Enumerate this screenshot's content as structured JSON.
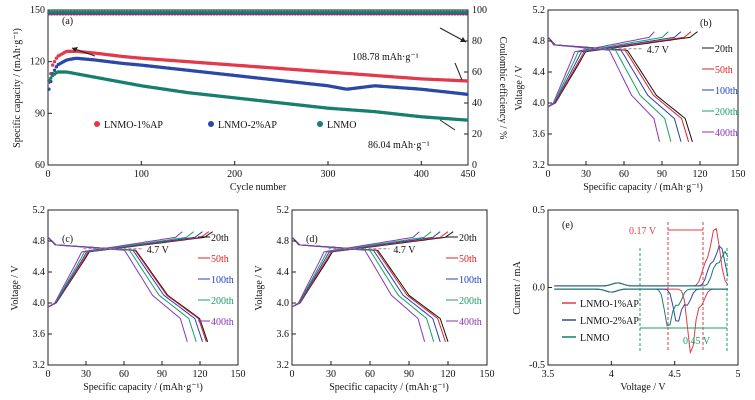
{
  "colors": {
    "lnmo_1ap": "#e23a4a",
    "lnmo_2ap": "#2c48a6",
    "lnmo": "#177f6f",
    "c20": "#111111",
    "c50": "#e02020",
    "c100": "#2040c0",
    "c200": "#18a060",
    "c400": "#8a36b8"
  },
  "chart_data": [
    {
      "panel": "(a)",
      "type": "scatter",
      "xlabel": "Cycle number",
      "ylabel": "Specific capacity / (mAh·g⁻¹)",
      "y2label": "Coulombic efficiency / %",
      "xlim": [
        0,
        450
      ],
      "ylim": [
        60,
        150
      ],
      "y2lim": [
        0,
        100
      ],
      "xticks": [
        0,
        100,
        200,
        300,
        400,
        450
      ],
      "yticks": [
        60,
        90,
        120,
        150
      ],
      "y2ticks": [
        0,
        20,
        40,
        60,
        80,
        100
      ],
      "series": [
        {
          "name": "LNMO-1%AP",
          "color_key": "lnmo_1ap",
          "x": [
            1,
            5,
            10,
            20,
            30,
            50,
            80,
            100,
            150,
            200,
            250,
            300,
            350,
            400,
            450
          ],
          "y": [
            108,
            118,
            123,
            126,
            126,
            125,
            123,
            122,
            120,
            118,
            116,
            114,
            112,
            110,
            108.78
          ]
        },
        {
          "name": "LNMO-2%AP",
          "color_key": "lnmo_2ap",
          "x": [
            1,
            5,
            10,
            20,
            30,
            50,
            80,
            100,
            150,
            200,
            250,
            300,
            320,
            350,
            400,
            450
          ],
          "y": [
            104,
            113,
            118,
            121,
            122,
            121,
            119,
            118,
            115,
            112,
            109,
            106,
            104,
            106,
            104,
            101
          ]
        },
        {
          "name": "LNMO",
          "color_key": "lnmo",
          "x": [
            1,
            5,
            10,
            20,
            30,
            50,
            80,
            100,
            150,
            200,
            250,
            300,
            350,
            400,
            450
          ],
          "y": [
            109,
            112,
            114,
            114,
            113,
            111,
            108,
            106,
            102,
            99,
            96,
            93,
            91,
            88,
            86.04
          ]
        },
        {
          "name": "CE",
          "axis": "y2",
          "x": [
            1,
            450
          ],
          "y": [
            98,
            98
          ]
        }
      ],
      "legend": [
        "LNMO-1%AP",
        "LNMO-2%AP",
        "LNMO"
      ],
      "annotations": [
        "108.78 mAh·g⁻¹",
        "86.04 mAh·g⁻¹"
      ]
    },
    {
      "panel": "(b)",
      "type": "line",
      "xlabel": "Specific capacity / (mAh·g⁻¹)",
      "ylabel": "Voltage / V",
      "xlim": [
        0,
        150
      ],
      "ylim": [
        3.2,
        5.2
      ],
      "xticks": [
        0,
        30,
        60,
        90,
        120,
        150
      ],
      "yticks": [
        3.2,
        3.6,
        4.0,
        4.4,
        4.8,
        5.2
      ],
      "cycles": [
        "20th",
        "50th",
        "100th",
        "200th",
        "400th"
      ],
      "discharge_end_capacity": [
        114,
        111,
        105,
        97,
        88
      ],
      "annotation": "4.7 V"
    },
    {
      "panel": "(c)",
      "type": "line",
      "xlabel": "Specific capacity / (mAh·g⁻¹)",
      "ylabel": "Voltage / V",
      "xlim": [
        0,
        150
      ],
      "ylim": [
        3.2,
        5.2
      ],
      "xticks": [
        0,
        30,
        60,
        90,
        120,
        150
      ],
      "yticks": [
        3.2,
        3.6,
        4.0,
        4.4,
        4.8,
        5.2
      ],
      "cycles": [
        "20th",
        "50th",
        "100th",
        "200th",
        "400th"
      ],
      "discharge_end_capacity": [
        126,
        125,
        122,
        117,
        110
      ],
      "annotation": "4.7 V"
    },
    {
      "panel": "(d)",
      "type": "line",
      "xlabel": "Specific capacity / (mAh·g⁻¹)",
      "ylabel": "Voltage / V",
      "xlim": [
        0,
        150
      ],
      "ylim": [
        3.2,
        5.2
      ],
      "xticks": [
        0,
        30,
        60,
        90,
        120,
        150
      ],
      "yticks": [
        3.2,
        3.6,
        4.0,
        4.4,
        4.8,
        5.2
      ],
      "cycles": [
        "20th",
        "50th",
        "100th",
        "200th",
        "400th"
      ],
      "discharge_end_capacity": [
        120,
        118,
        114,
        109,
        102
      ],
      "annotation": "4.7 V"
    },
    {
      "panel": "(e)",
      "type": "line",
      "xlabel": "Voltage / V",
      "ylabel": "Current / mA",
      "xlim": [
        3.5,
        5.0
      ],
      "ylim": [
        -0.5,
        0.5
      ],
      "xticks": [
        3.5,
        4.0,
        4.5,
        5.0
      ],
      "yticks": [
        -0.5,
        0.0,
        0.5
      ],
      "series": [
        "LNMO-1%AP",
        "LNMO-2%AP",
        "LNMO"
      ],
      "annotations": [
        "0.17 V",
        "0.45 V"
      ]
    }
  ],
  "text": {
    "a_label": "(a)",
    "b_label": "(b)",
    "c_label": "(c)",
    "d_label": "(d)",
    "e_label": "(e)",
    "a_xlabel": "Cycle number",
    "a_ylabel": "Specific capacity / (mAh·g⁻¹)",
    "a_y2label": "Coulombic efficiency / %",
    "a_annot1": "108.78 mAh·g⁻¹",
    "a_annot2": "86.04 mAh·g⁻¹",
    "leg1": "LNMO-1%AP",
    "leg2": "LNMO-2%AP",
    "leg3": "LNMO",
    "cap_xlabel": "Specific capacity / (mAh·g⁻¹)",
    "volt_ylabel": "Voltage / V",
    "v47": "4.7 V",
    "cyc20": "20th",
    "cyc50": "50th",
    "cyc100": "100th",
    "cyc200": "200th",
    "cyc400": "400th",
    "e_xlabel": "Voltage / V",
    "e_ylabel": "Current / mA",
    "e_annot1": "0.17 V",
    "e_annot2": "0.45 V"
  }
}
